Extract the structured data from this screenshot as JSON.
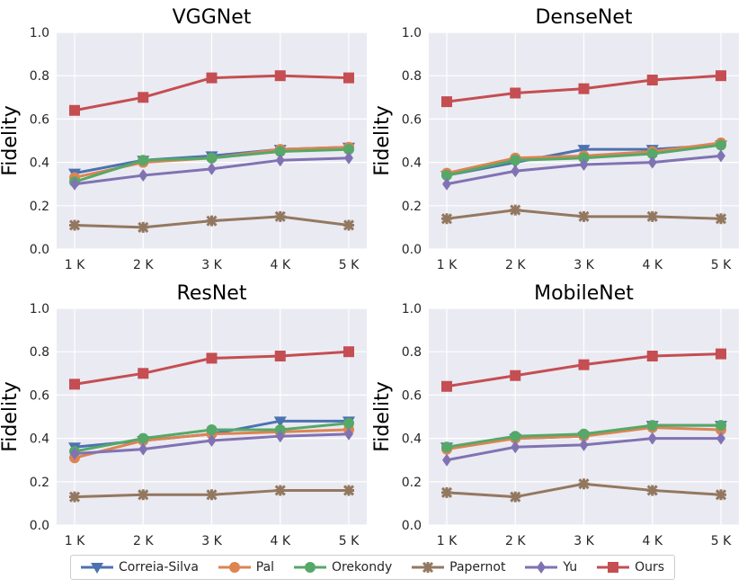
{
  "legend": [
    {
      "name": "Correia-Silva",
      "color": "#4c72b0",
      "marker": "triangle-down"
    },
    {
      "name": "Pal",
      "color": "#dd8452",
      "marker": "circle"
    },
    {
      "name": "Orekondy",
      "color": "#55a868",
      "marker": "circle"
    },
    {
      "name": "Papernot",
      "color": "#937860",
      "marker": "x"
    },
    {
      "name": "Yu",
      "color": "#8172b3",
      "marker": "diamond"
    },
    {
      "name": "Ours",
      "color": "#c44e52",
      "marker": "square"
    }
  ],
  "chart_data": [
    {
      "type": "line",
      "title": "VGGNet",
      "xlabel": "",
      "ylabel": "Fidelity",
      "categories": [
        "1 K",
        "2 K",
        "3 K",
        "4 K",
        "5 K"
      ],
      "ylim": [
        0,
        1.0
      ],
      "yticks": [
        "0.0",
        "0.2",
        "0.4",
        "0.6",
        "0.8",
        "1.0"
      ],
      "series": [
        {
          "name": "Correia-Silva",
          "values": [
            0.35,
            0.41,
            0.43,
            0.46,
            0.47
          ]
        },
        {
          "name": "Pal",
          "values": [
            0.33,
            0.4,
            0.42,
            0.46,
            0.47
          ]
        },
        {
          "name": "Orekondy",
          "values": [
            0.31,
            0.41,
            0.42,
            0.45,
            0.46
          ]
        },
        {
          "name": "Papernot",
          "values": [
            0.11,
            0.1,
            0.13,
            0.15,
            0.11
          ]
        },
        {
          "name": "Yu",
          "values": [
            0.3,
            0.34,
            0.37,
            0.41,
            0.42
          ]
        },
        {
          "name": "Ours",
          "values": [
            0.64,
            0.7,
            0.79,
            0.8,
            0.79
          ]
        }
      ]
    },
    {
      "type": "line",
      "title": "DenseNet",
      "xlabel": "",
      "ylabel": "Fidelity",
      "categories": [
        "1 K",
        "2 K",
        "3 K",
        "4 K",
        "5 K"
      ],
      "ylim": [
        0,
        1.0
      ],
      "yticks": [
        "0.0",
        "0.2",
        "0.4",
        "0.6",
        "0.8",
        "1.0"
      ],
      "series": [
        {
          "name": "Correia-Silva",
          "values": [
            0.34,
            0.4,
            0.46,
            0.46,
            0.48
          ]
        },
        {
          "name": "Pal",
          "values": [
            0.35,
            0.42,
            0.43,
            0.45,
            0.49
          ]
        },
        {
          "name": "Orekondy",
          "values": [
            0.34,
            0.41,
            0.42,
            0.44,
            0.48
          ]
        },
        {
          "name": "Papernot",
          "values": [
            0.14,
            0.18,
            0.15,
            0.15,
            0.14
          ]
        },
        {
          "name": "Yu",
          "values": [
            0.3,
            0.36,
            0.39,
            0.4,
            0.43
          ]
        },
        {
          "name": "Ours",
          "values": [
            0.68,
            0.72,
            0.74,
            0.78,
            0.8
          ]
        }
      ]
    },
    {
      "type": "line",
      "title": "ResNet",
      "xlabel": "",
      "ylabel": "Fidelity",
      "categories": [
        "1 K",
        "2 K",
        "3 K",
        "4 K",
        "5 K"
      ],
      "ylim": [
        0,
        1.0
      ],
      "yticks": [
        "0.0",
        "0.2",
        "0.4",
        "0.6",
        "0.8",
        "1.0"
      ],
      "series": [
        {
          "name": "Correia-Silva",
          "values": [
            0.36,
            0.39,
            0.42,
            0.48,
            0.48
          ]
        },
        {
          "name": "Pal",
          "values": [
            0.31,
            0.39,
            0.42,
            0.43,
            0.44
          ]
        },
        {
          "name": "Orekondy",
          "values": [
            0.34,
            0.4,
            0.44,
            0.44,
            0.47
          ]
        },
        {
          "name": "Papernot",
          "values": [
            0.13,
            0.14,
            0.14,
            0.16,
            0.16
          ]
        },
        {
          "name": "Yu",
          "values": [
            0.33,
            0.35,
            0.39,
            0.41,
            0.42
          ]
        },
        {
          "name": "Ours",
          "values": [
            0.65,
            0.7,
            0.77,
            0.78,
            0.8
          ]
        }
      ]
    },
    {
      "type": "line",
      "title": "MobileNet",
      "xlabel": "",
      "ylabel": "Fidelity",
      "categories": [
        "1 K",
        "2 K",
        "3 K",
        "4 K",
        "5 K"
      ],
      "ylim": [
        0,
        1.0
      ],
      "yticks": [
        "0.0",
        "0.2",
        "0.4",
        "0.6",
        "0.8",
        "1.0"
      ],
      "series": [
        {
          "name": "Correia-Silva",
          "values": [
            0.36,
            0.4,
            0.41,
            0.46,
            0.46
          ]
        },
        {
          "name": "Pal",
          "values": [
            0.35,
            0.4,
            0.41,
            0.45,
            0.44
          ]
        },
        {
          "name": "Orekondy",
          "values": [
            0.36,
            0.41,
            0.42,
            0.46,
            0.46
          ]
        },
        {
          "name": "Papernot",
          "values": [
            0.15,
            0.13,
            0.19,
            0.16,
            0.14
          ]
        },
        {
          "name": "Yu",
          "values": [
            0.3,
            0.36,
            0.37,
            0.4,
            0.4
          ]
        },
        {
          "name": "Ours",
          "values": [
            0.64,
            0.69,
            0.74,
            0.78,
            0.79
          ]
        }
      ]
    }
  ]
}
